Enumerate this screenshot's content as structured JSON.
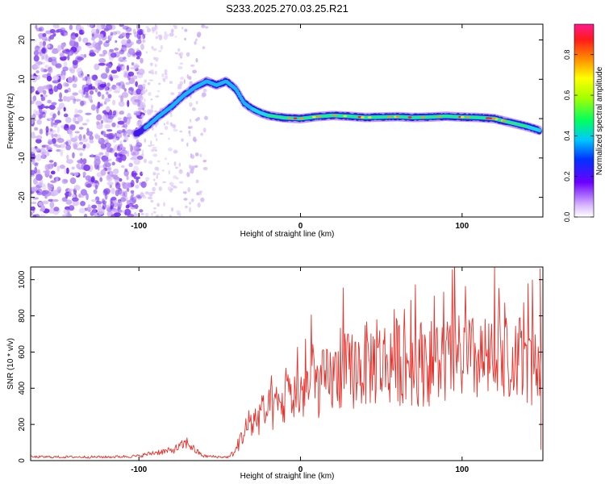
{
  "title": "S233.2025.270.03.25.R21",
  "chart_data": [
    {
      "type": "heatmap",
      "xlabel": "Height of straight line (km)",
      "ylabel": "Frequency (Hz)",
      "xlim": [
        -167,
        150
      ],
      "ylim": [
        -25,
        24
      ],
      "xticks": [
        -100,
        0,
        100
      ],
      "yticks": [
        -20,
        -10,
        0,
        10,
        20
      ],
      "ridge": {
        "x": [
          -102,
          -95,
          -88,
          -80,
          -72,
          -65,
          -58,
          -52,
          -46,
          -40,
          -35,
          -30,
          -25,
          -20,
          -10,
          0,
          10,
          20,
          30,
          40,
          50,
          60,
          70,
          80,
          90,
          100,
          110,
          120,
          130,
          140,
          148
        ],
        "y": [
          -4,
          -2,
          0.5,
          3,
          6,
          8,
          9.5,
          8.5,
          9.5,
          7.5,
          4,
          2.5,
          1.5,
          0.8,
          0.2,
          0.0,
          0.5,
          0.8,
          0.6,
          0.3,
          0.4,
          0.5,
          0.3,
          0.4,
          0.6,
          0.4,
          0.3,
          0.0,
          -1.0,
          -2.0,
          -3.0
        ]
      },
      "colorbar": {
        "label": "Normalized spectral amplitude",
        "ticks": [
          0.0,
          0.2,
          0.4,
          0.6,
          0.8
        ],
        "range": [
          0,
          0.95
        ]
      }
    },
    {
      "type": "line",
      "xlabel": "Height of straight line (km)",
      "ylabel": "SNR (10 * v/v)",
      "xlim": [
        -167,
        150
      ],
      "ylim": [
        0,
        1070
      ],
      "xticks": [
        -100,
        0,
        100
      ],
      "yticks": [
        0,
        200,
        400,
        600,
        800,
        1000
      ],
      "color": "#e8322c",
      "envelope": {
        "x": [
          -167,
          -120,
          -100,
          -90,
          -80,
          -75,
          -70,
          -65,
          -60,
          -50,
          -44,
          -40,
          -35,
          -25,
          -15,
          -5,
          5,
          15,
          25,
          40,
          60,
          80,
          100,
          120,
          140,
          148
        ],
        "y": [
          20,
          20,
          25,
          45,
          55,
          75,
          100,
          55,
          25,
          20,
          20,
          60,
          160,
          250,
          290,
          350,
          400,
          430,
          480,
          530,
          550,
          540,
          560,
          540,
          550,
          520
        ]
      }
    }
  ]
}
